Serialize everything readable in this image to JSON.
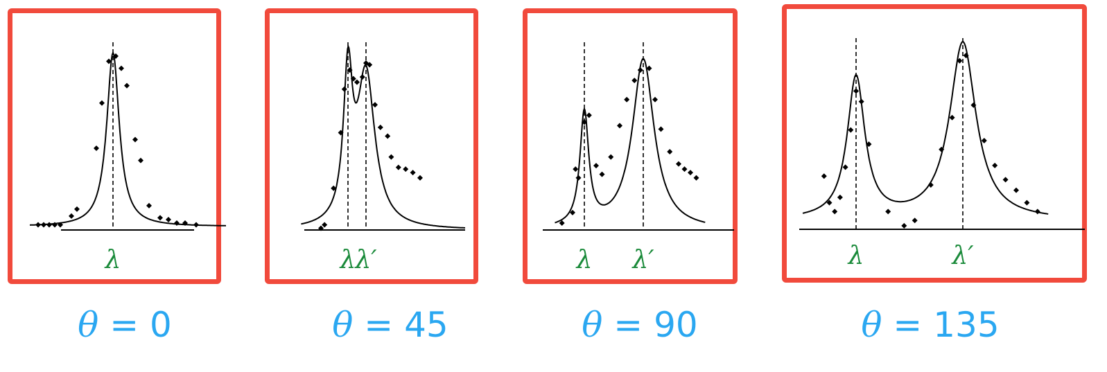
{
  "chart_data": [
    {
      "type": "line",
      "caption": {
        "symbol": "θ",
        "equals": "=",
        "value": "0"
      },
      "markers": [
        {
          "label": "λ",
          "x": 0
        }
      ],
      "series": [
        {
          "peak_x": 0,
          "peak_y": 1.0,
          "width": 0.55
        }
      ],
      "baseline": 0.02,
      "xlim": [
        -3,
        4.5
      ],
      "points": [
        [
          -2.7,
          0.03
        ],
        [
          -2.5,
          0.03
        ],
        [
          -2.3,
          0.03
        ],
        [
          -2.1,
          0.03
        ],
        [
          -1.9,
          0.03
        ],
        [
          -1.5,
          0.08
        ],
        [
          -1.3,
          0.12
        ],
        [
          -0.6,
          0.47
        ],
        [
          -0.4,
          0.73
        ],
        [
          -0.15,
          0.97
        ],
        [
          0.1,
          1.0
        ],
        [
          0.3,
          0.93
        ],
        [
          0.5,
          0.83
        ],
        [
          0.8,
          0.52
        ],
        [
          1.0,
          0.4
        ],
        [
          1.3,
          0.14
        ],
        [
          1.7,
          0.07
        ],
        [
          2.0,
          0.06
        ],
        [
          2.3,
          0.04
        ],
        [
          2.6,
          0.04
        ],
        [
          3.0,
          0.03
        ]
      ]
    },
    {
      "type": "line",
      "caption": {
        "symbol": "θ",
        "equals": "=",
        "value": "45"
      },
      "markers": [
        {
          "label": "λ",
          "x": 0
        },
        {
          "label": "λ′",
          "x": 1
        }
      ],
      "series": [
        {
          "peak_x": 0,
          "peak_y": 0.82,
          "width": 0.6
        },
        {
          "peak_x": 1,
          "peak_y": 0.88,
          "width": 1.2
        }
      ],
      "baseline": 0.0,
      "xlim": [
        -2.6,
        6.5
      ],
      "points": [
        [
          -1.5,
          0.01
        ],
        [
          -1.3,
          0.03
        ],
        [
          -0.8,
          0.24
        ],
        [
          -0.4,
          0.56
        ],
        [
          -0.2,
          0.81
        ],
        [
          0.1,
          0.92
        ],
        [
          0.3,
          0.87
        ],
        [
          0.5,
          0.85
        ],
        [
          0.8,
          0.88
        ],
        [
          1.0,
          0.96
        ],
        [
          1.2,
          0.95
        ],
        [
          1.5,
          0.72
        ],
        [
          1.8,
          0.59
        ],
        [
          2.2,
          0.54
        ],
        [
          2.4,
          0.42
        ],
        [
          2.8,
          0.36
        ],
        [
          3.2,
          0.35
        ],
        [
          3.6,
          0.33
        ],
        [
          4.0,
          0.3
        ]
      ]
    },
    {
      "type": "line",
      "caption": {
        "symbol": "θ",
        "equals": "=",
        "value": "90"
      },
      "markers": [
        {
          "label": "λ",
          "x": 0
        },
        {
          "label": "λ′",
          "x": 1
        }
      ],
      "series": [
        {
          "peak_x": 0,
          "peak_y": 0.65,
          "width": 0.18
        },
        {
          "peak_x": 1,
          "peak_y": 0.98,
          "width": 0.45
        }
      ],
      "baseline": 0.0,
      "xlim": [
        -0.5,
        2.05
      ],
      "points": [
        [
          -0.38,
          0.04
        ],
        [
          -0.2,
          0.1
        ],
        [
          -0.15,
          0.35
        ],
        [
          -0.1,
          0.3
        ],
        [
          0.0,
          0.62
        ],
        [
          0.08,
          0.66
        ],
        [
          0.2,
          0.37
        ],
        [
          0.3,
          0.32
        ],
        [
          0.45,
          0.42
        ],
        [
          0.6,
          0.6
        ],
        [
          0.72,
          0.75
        ],
        [
          0.85,
          0.86
        ],
        [
          0.95,
          0.92
        ],
        [
          1.1,
          0.93
        ],
        [
          1.2,
          0.75
        ],
        [
          1.3,
          0.58
        ],
        [
          1.45,
          0.45
        ],
        [
          1.6,
          0.38
        ],
        [
          1.7,
          0.35
        ],
        [
          1.8,
          0.33
        ],
        [
          1.9,
          0.3
        ]
      ]
    },
    {
      "type": "line",
      "caption": {
        "symbol": "θ",
        "equals": "=",
        "value": "135"
      },
      "markers": [
        {
          "label": "λ",
          "x": 0
        },
        {
          "label": "λ′",
          "x": 1
        }
      ],
      "series": [
        {
          "peak_x": 0,
          "peak_y": 0.8,
          "width": 0.2
        },
        {
          "peak_x": 1,
          "peak_y": 1.0,
          "width": 0.3
        }
      ],
      "baseline": 0.05,
      "xlim": [
        -0.5,
        1.8
      ],
      "points": [
        [
          -0.3,
          0.3
        ],
        [
          -0.25,
          0.15
        ],
        [
          -0.2,
          0.1
        ],
        [
          -0.15,
          0.18
        ],
        [
          -0.1,
          0.35
        ],
        [
          -0.05,
          0.56
        ],
        [
          0.0,
          0.78
        ],
        [
          0.05,
          0.72
        ],
        [
          0.12,
          0.48
        ],
        [
          0.3,
          0.1
        ],
        [
          0.45,
          0.02
        ],
        [
          0.55,
          0.05
        ],
        [
          0.7,
          0.25
        ],
        [
          0.8,
          0.45
        ],
        [
          0.9,
          0.63
        ],
        [
          0.97,
          0.95
        ],
        [
          1.03,
          0.98
        ],
        [
          1.1,
          0.7
        ],
        [
          1.2,
          0.5
        ],
        [
          1.3,
          0.36
        ],
        [
          1.4,
          0.28
        ],
        [
          1.5,
          0.22
        ],
        [
          1.6,
          0.15
        ],
        [
          1.7,
          0.1
        ]
      ]
    }
  ]
}
